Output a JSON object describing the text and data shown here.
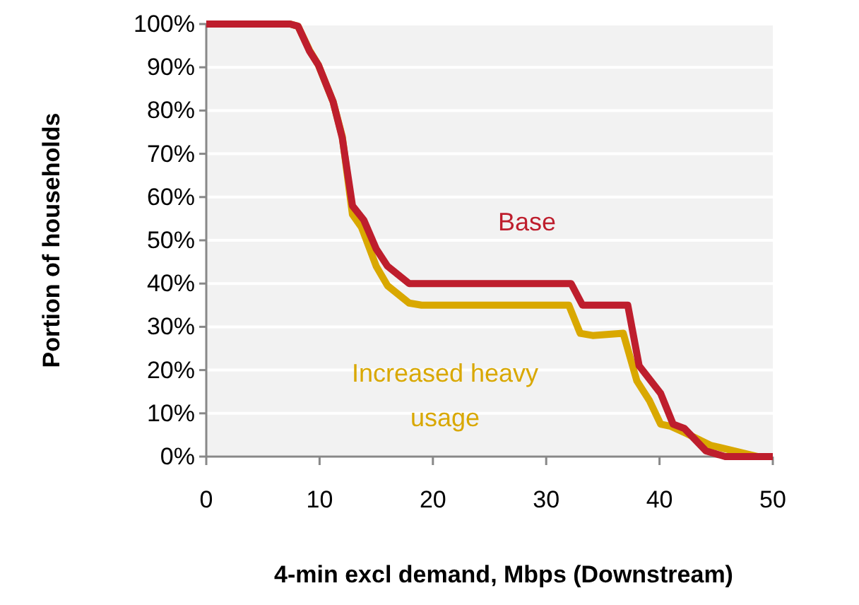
{
  "chart_data": {
    "type": "line",
    "xlabel": "4-min excl demand, Mbps (Downstream)",
    "ylabel": "Portion of households",
    "xlim": [
      0,
      50
    ],
    "xticks": [
      0,
      10,
      20,
      30,
      40,
      50
    ],
    "ylim": [
      0,
      100
    ],
    "yticks": [
      {
        "value": 0,
        "label": "0%"
      },
      {
        "value": 10,
        "label": "10%"
      },
      {
        "value": 20,
        "label": "20%"
      },
      {
        "value": 30,
        "label": "30%"
      },
      {
        "value": 40,
        "label": "40%"
      },
      {
        "value": 50,
        "label": "50%"
      },
      {
        "value": 60,
        "label": "60%"
      },
      {
        "value": 70,
        "label": "70%"
      },
      {
        "value": 80,
        "label": "80%"
      },
      {
        "value": 90,
        "label": "90%"
      },
      {
        "value": 100,
        "label": "100%"
      }
    ],
    "grid": "y",
    "legend": false,
    "marker": "none",
    "line_style": "solid",
    "series": [
      {
        "name": "Increased heavy usage",
        "color": "#d9a800",
        "x": [
          0,
          7.4,
          8.1,
          9.1,
          9.9,
          11.2,
          12.0,
          12.9,
          13.7,
          15.0,
          16.0,
          17.9,
          19.0,
          32.0,
          33.0,
          34.1,
          36.8,
          38.0,
          39.1,
          40.1,
          41.0,
          42.4,
          44.5,
          48.7,
          50
        ],
        "values": [
          100,
          100,
          99.5,
          94,
          90.5,
          82,
          74,
          56,
          53,
          44,
          39.5,
          35.5,
          35,
          35,
          28.5,
          28,
          28.5,
          17.5,
          13,
          7.5,
          7,
          5.3,
          2.6,
          0,
          0
        ]
      },
      {
        "name": "Base",
        "color": "#be1e2d",
        "x": [
          0,
          7.4,
          8.1,
          9.1,
          9.9,
          11.2,
          12.0,
          12.9,
          13.9,
          15.0,
          16.0,
          17.9,
          32.2,
          33.2,
          37.2,
          38.2,
          40.1,
          41.2,
          42.2,
          44.1,
          45.8,
          50
        ],
        "values": [
          100,
          100,
          99.5,
          93.8,
          90.5,
          82,
          73.7,
          58,
          54.7,
          48,
          44,
          40,
          40,
          35,
          35,
          21,
          14.6,
          7.5,
          6.5,
          1.3,
          0,
          0
        ]
      }
    ]
  }
}
